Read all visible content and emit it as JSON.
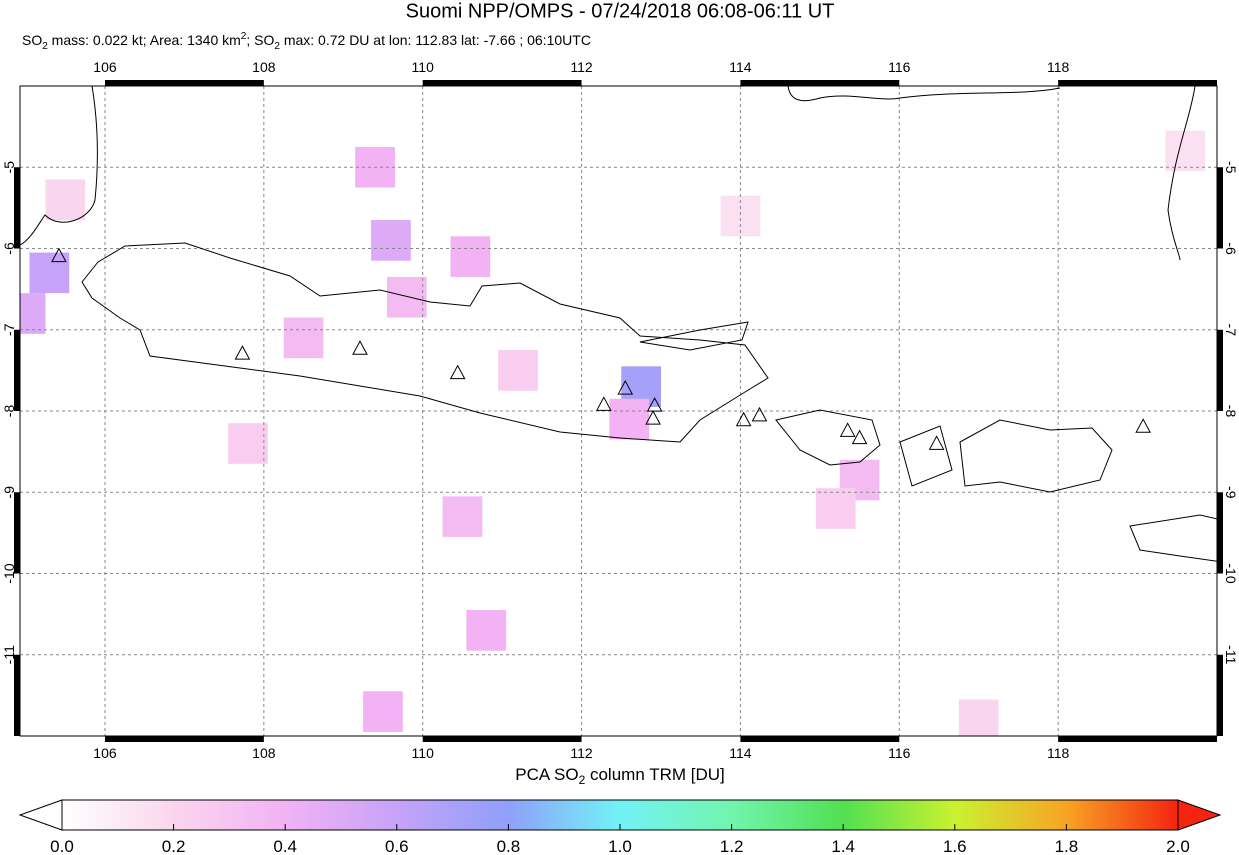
{
  "map": {
    "title": "Suomi NPP/OMPS - 07/24/2018 06:08-06:11 UT",
    "subtitle_parts": [
      "SO",
      "2",
      " mass: 0.022 kt; Area: 1340 km",
      "2",
      "; SO",
      "2",
      " max: 0.72 DU at lon: 112.83 lat: -7.66 ; 06:10UTC"
    ],
    "xlim": [
      104.93,
      120
    ],
    "ylim": [
      -12,
      -4
    ],
    "xticks": [
      106,
      108,
      110,
      112,
      114,
      116,
      118
    ],
    "yticks": [
      -5,
      -6,
      -7,
      -8,
      -9,
      -10,
      -11
    ],
    "grid": true,
    "cells": [
      {
        "lon": 105.3,
        "lat": -6.3,
        "value": 0.6
      },
      {
        "lon": 105.0,
        "lat": -6.8,
        "value": 0.5
      },
      {
        "lon": 109.6,
        "lat": -5.9,
        "value": 0.5
      },
      {
        "lon": 109.4,
        "lat": -5.0,
        "value": 0.4
      },
      {
        "lon": 110.6,
        "lat": -6.1,
        "value": 0.4
      },
      {
        "lon": 109.8,
        "lat": -6.6,
        "value": 0.35
      },
      {
        "lon": 108.5,
        "lat": -7.1,
        "value": 0.35
      },
      {
        "lon": 112.75,
        "lat": -7.7,
        "value": 0.72
      },
      {
        "lon": 112.6,
        "lat": -8.1,
        "value": 0.4
      },
      {
        "lon": 115.5,
        "lat": -8.85,
        "value": 0.35
      },
      {
        "lon": 115.2,
        "lat": -9.2,
        "value": 0.25
      },
      {
        "lon": 110.5,
        "lat": -9.3,
        "value": 0.35
      },
      {
        "lon": 110.8,
        "lat": -10.7,
        "value": 0.4
      },
      {
        "lon": 109.5,
        "lat": -11.7,
        "value": 0.4
      },
      {
        "lon": 107.8,
        "lat": -8.4,
        "value": 0.25
      },
      {
        "lon": 111.2,
        "lat": -7.5,
        "value": 0.25
      },
      {
        "lon": 105.5,
        "lat": -5.4,
        "value": 0.2
      },
      {
        "lon": 114.0,
        "lat": -5.6,
        "value": 0.15
      },
      {
        "lon": 117.0,
        "lat": -11.8,
        "value": 0.2
      },
      {
        "lon": 119.6,
        "lat": -4.8,
        "value": 0.15
      }
    ],
    "volcanoes": [
      {
        "lon": 105.42,
        "lat": -6.1
      },
      {
        "lon": 107.73,
        "lat": -7.3
      },
      {
        "lon": 109.21,
        "lat": -7.24
      },
      {
        "lon": 110.44,
        "lat": -7.54
      },
      {
        "lon": 112.28,
        "lat": -7.93
      },
      {
        "lon": 112.55,
        "lat": -7.73
      },
      {
        "lon": 112.92,
        "lat": -7.94
      },
      {
        "lon": 112.9,
        "lat": -8.1
      },
      {
        "lon": 114.04,
        "lat": -8.12
      },
      {
        "lon": 114.24,
        "lat": -8.06
      },
      {
        "lon": 115.35,
        "lat": -8.25
      },
      {
        "lon": 115.5,
        "lat": -8.34
      },
      {
        "lon": 116.47,
        "lat": -8.41
      },
      {
        "lon": 119.07,
        "lat": -8.2
      }
    ],
    "colorbar": {
      "label_parts": [
        "PCA SO",
        "2",
        " column TRM [DU]"
      ],
      "clim": [
        0,
        2
      ],
      "colors": [
        "#ffffff",
        "#fad6ee",
        "#f2b2f4",
        "#c6a2f8",
        "#8fa0fb",
        "#72f2f6",
        "#72f4ae",
        "#52e052",
        "#caf230",
        "#f8a424",
        "#f42410"
      ],
      "ticks": [
        {
          "value": 0,
          "label": "0.0"
        },
        0.2,
        0.4,
        0.6,
        0.8,
        {
          "value": 1,
          "label": "1.0"
        },
        1.2,
        1.4,
        1.6,
        1.8,
        {
          "value": 2,
          "label": "2.0"
        }
      ]
    }
  }
}
